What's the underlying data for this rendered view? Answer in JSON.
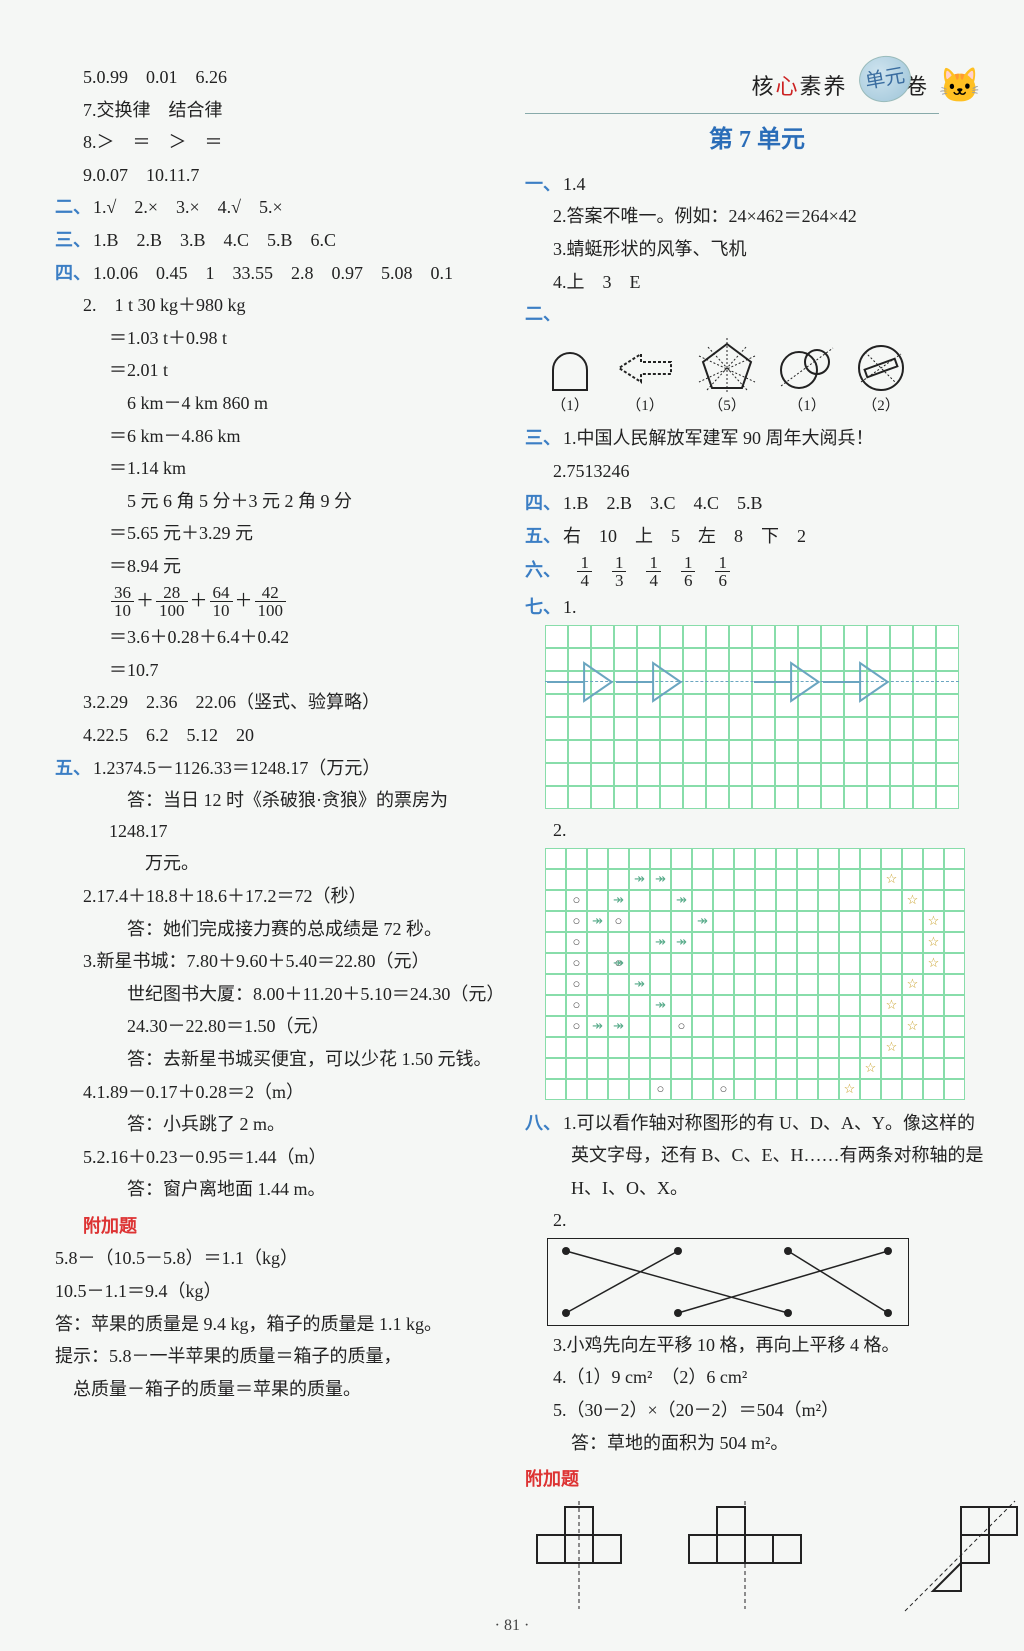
{
  "page_number": "· 81 ·",
  "brand": {
    "left": "核",
    "hl": "心",
    "mid": "素养",
    "circle": "单元",
    "right": "卷"
  },
  "left": {
    "top": [
      "5.0.99　0.01　6.26",
      "7.交换律　结合律",
      "8.＞　＝　＞　＝",
      "9.0.07　10.11.7"
    ],
    "s2": {
      "label": "二、",
      "text": "1.√　2.×　3.×　4.√　5.×"
    },
    "s3": {
      "label": "三、",
      "text": "1.B　2.B　3.B　4.C　5.B　6.C"
    },
    "s4": {
      "label": "四、",
      "l1": "1.0.06　0.45　1　33.55　2.8　0.97　5.08　0.1",
      "calc": [
        "2.　1 t 30 kg＋980 kg",
        "＝1.03 t＋0.98 t",
        "＝2.01 t",
        "　6 km－4 km 860 m",
        "＝6 km－4.86 km",
        "＝1.14 km",
        "　5 元 6 角 5 分＋3 元 2 角 9 分",
        "＝5.65 元＋3.29 元",
        "＝8.94 元"
      ],
      "frac": {
        "terms": [
          {
            "n": "36",
            "d": "10"
          },
          {
            "n": "28",
            "d": "100"
          },
          {
            "n": "64",
            "d": "10"
          },
          {
            "n": "42",
            "d": "100"
          }
        ],
        "r1": "＝3.6＋0.28＋6.4＋0.42",
        "r2": "＝10.7"
      },
      "l3": "3.2.29　2.36　22.06（竖式、验算略）",
      "l4": "4.22.5　6.2　5.12　20"
    },
    "s5": {
      "label": "五、",
      "items": [
        "1.2374.5－1126.33＝1248.17（万元）",
        "　答：当日 12 时《杀破狼·贪狼》的票房为 1248.17",
        "　　万元。",
        "2.17.4＋18.8＋18.6＋17.2＝72（秒）",
        "　答：她们完成接力赛的总成绩是 72 秒。",
        "3.新星书城：7.80＋9.60＋5.40＝22.80（元）",
        "　世纪图书大厦：8.00＋11.20＋5.10＝24.30（元）",
        "　24.30－22.80＝1.50（元）",
        "　答：去新星书城买便宜，可以少花 1.50 元钱。",
        "4.1.89－0.17＋0.28＝2（m）",
        "　答：小兵跳了 2 m。",
        "5.2.16＋0.23－0.95＝1.44（m）",
        "　答：窗户离地面 1.44 m。"
      ]
    },
    "bonus_label": "附加题",
    "bonus": [
      "5.8－（10.5－5.8）＝1.1（kg）",
      "10.5－1.1＝9.4（kg）",
      "答：苹果的质量是 9.4 kg，箱子的质量是 1.1 kg。",
      "提示：5.8－一半苹果的质量＝箱子的质量，",
      "　总质量－箱子的质量＝苹果的质量。"
    ]
  },
  "right": {
    "unit_title": "第 7 单元",
    "s1": {
      "label": "一、",
      "lines": [
        "1.4",
        "2.答案不唯一。例如：24×462＝264×42",
        "3.蜻蜓形状的风筝、飞机",
        "4.上　3　E"
      ]
    },
    "s2": {
      "label": "二、"
    },
    "symmetry_counts": [
      "（1）",
      "（1）",
      "（5）",
      "（1）",
      "（2）"
    ],
    "s3": {
      "label": "三、",
      "lines": [
        "1.中国人民解放军建军 90 周年大阅兵！",
        "2.7513246"
      ]
    },
    "s4": {
      "label": "四、",
      "text": "1.B　2.B　3.C　4.C　5.B"
    },
    "s5": {
      "label": "五、",
      "text": "右　10　上　5　左　8　下　2"
    },
    "s6": {
      "label": "六、",
      "fracs": [
        {
          "n": "1",
          "d": "4"
        },
        {
          "n": "1",
          "d": "3"
        },
        {
          "n": "1",
          "d": "4"
        },
        {
          "n": "1",
          "d": "6"
        },
        {
          "n": "1",
          "d": "6"
        }
      ]
    },
    "s7": {
      "label": "七、",
      "g1_prefix": "1.",
      "g2_prefix": "2."
    },
    "grid1": {
      "cols": 18,
      "rows": 8,
      "cell": 23,
      "dash_row": 2,
      "arrows": [
        {
          "r": 2,
          "c": 0
        },
        {
          "r": 2,
          "c": 3
        },
        {
          "r": 2,
          "c": 9
        },
        {
          "r": 2,
          "c": 12
        }
      ],
      "color": "#6aa5c0"
    },
    "grid2": {
      "cols": 20,
      "rows": 12,
      "cell": 21,
      "fish_marks": [
        [
          1,
          4
        ],
        [
          1,
          5
        ],
        [
          2,
          3
        ],
        [
          2,
          6
        ],
        [
          3,
          2
        ],
        [
          3,
          7
        ],
        [
          4,
          5
        ],
        [
          4,
          6
        ],
        [
          5,
          3
        ],
        [
          6,
          4
        ],
        [
          7,
          5
        ],
        [
          8,
          2
        ],
        [
          8,
          3
        ]
      ],
      "circles": [
        [
          2,
          1
        ],
        [
          3,
          1
        ],
        [
          4,
          1
        ],
        [
          5,
          1
        ],
        [
          6,
          1
        ],
        [
          7,
          1
        ],
        [
          8,
          1
        ],
        [
          3,
          3
        ],
        [
          5,
          3
        ],
        [
          8,
          6
        ],
        [
          11,
          5
        ],
        [
          11,
          8
        ]
      ],
      "stars": [
        [
          1,
          16
        ],
        [
          2,
          17
        ],
        [
          3,
          18
        ],
        [
          4,
          18
        ],
        [
          5,
          18
        ],
        [
          6,
          17
        ],
        [
          7,
          16
        ],
        [
          8,
          17
        ],
        [
          9,
          16
        ],
        [
          10,
          15
        ],
        [
          11,
          14
        ]
      ]
    },
    "s8": {
      "label": "八、",
      "lines": [
        "1.可以看作轴对称图形的有 U、D、A、Y。像这样的",
        "　英文字母，还有 B、C、E、H……有两条对称轴的是",
        "　H、I、O、X。",
        "2."
      ],
      "after_cross": [
        "3.小鸡先向左平移 10 格，再向上平移 4 格。",
        "4.（1）9 cm²　（2）6 cm²",
        "5.（30－2）×（20－2）＝504（m²）",
        "　答：草地的面积为 504 m²。"
      ]
    },
    "bonus_label": "附加题"
  },
  "colors": {
    "section": "#3b7ec4",
    "accent": "#d33",
    "grid_border": "#8da",
    "bg": "#f5f7f5"
  }
}
